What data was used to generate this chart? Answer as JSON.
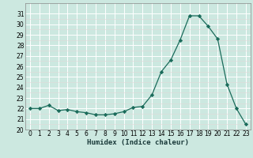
{
  "x": [
    0,
    1,
    2,
    3,
    4,
    5,
    6,
    7,
    8,
    9,
    10,
    11,
    12,
    13,
    14,
    15,
    16,
    17,
    18,
    19,
    20,
    21,
    22,
    23
  ],
  "y": [
    22.0,
    22.0,
    22.3,
    21.8,
    21.9,
    21.7,
    21.6,
    21.4,
    21.4,
    21.5,
    21.7,
    22.1,
    22.2,
    23.3,
    25.5,
    26.6,
    28.5,
    30.8,
    30.8,
    29.8,
    28.6,
    24.3,
    22.0,
    20.5
  ],
  "xlabel": "Humidex (Indice chaleur)",
  "ylim": [
    20,
    32
  ],
  "xlim": [
    -0.5,
    23.5
  ],
  "yticks": [
    20,
    21,
    22,
    23,
    24,
    25,
    26,
    27,
    28,
    29,
    30,
    31
  ],
  "xticks": [
    0,
    1,
    2,
    3,
    4,
    5,
    6,
    7,
    8,
    9,
    10,
    11,
    12,
    13,
    14,
    15,
    16,
    17,
    18,
    19,
    20,
    21,
    22,
    23
  ],
  "line_color": "#1a6b5a",
  "bg_color": "#cce8e0",
  "grid_color": "#ffffff",
  "grid_minor_color": "#e0d8d8",
  "tick_fontsize": 5.5,
  "xlabel_fontsize": 6.5
}
